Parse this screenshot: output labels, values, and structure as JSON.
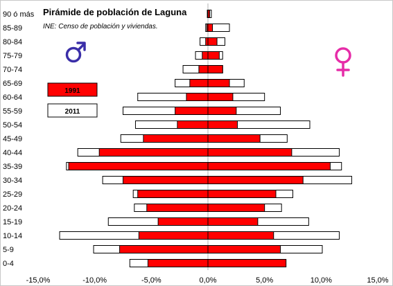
{
  "chart_data": {
    "type": "bar",
    "orientation": "horizontal",
    "title": "Pirámide de población de Laguna",
    "subtitle": "INE: Censo de población y viviendas.",
    "categories": [
      "0-4",
      "5-9",
      "10-14",
      "15-19",
      "20-24",
      "25-29",
      "30-34",
      "35-39",
      "40-44",
      "45-49",
      "50-54",
      "55-59",
      "60-64",
      "65-69",
      "70-74",
      "75-79",
      "80-84",
      "85-89",
      "90 ó más"
    ],
    "series": [
      {
        "name": "1991",
        "color": "#ff0000",
        "male": [
          -5.3,
          -7.8,
          -6.1,
          -4.4,
          -5.4,
          -6.2,
          -7.5,
          -12.3,
          -9.6,
          -5.7,
          -2.7,
          -2.9,
          -1.9,
          -1.6,
          -0.8,
          -0.5,
          -0.2,
          -0.1,
          -0.05
        ],
        "female": [
          6.9,
          6.4,
          5.8,
          4.4,
          5.0,
          6.0,
          8.4,
          10.8,
          7.4,
          4.6,
          2.6,
          2.5,
          2.2,
          1.9,
          1.3,
          1.0,
          0.8,
          0.4,
          0.15
        ]
      },
      {
        "name": "2011",
        "color": "#ffffff",
        "male": [
          -6.9,
          -10.1,
          -13.1,
          -8.8,
          -6.5,
          -6.6,
          -9.3,
          -12.5,
          -11.5,
          -7.7,
          -6.4,
          -7.5,
          -6.2,
          -2.9,
          -2.2,
          -1.1,
          -0.7,
          -0.2,
          -0.05
        ],
        "female": [
          5.4,
          10.1,
          11.6,
          8.9,
          6.5,
          7.5,
          12.7,
          11.8,
          11.6,
          7.0,
          9.0,
          6.4,
          5.0,
          3.2,
          1.3,
          1.3,
          1.5,
          1.9,
          0.3
        ]
      }
    ],
    "xlim": [
      -15,
      15
    ],
    "xticks": [
      -15,
      -10,
      -5,
      0,
      5,
      10,
      15
    ],
    "xtick_labels": [
      "-15,0%",
      "-10,0%",
      "-5,0%",
      "0,0%",
      "5,0%",
      "10,0%",
      "15,0%"
    ],
    "legend": {
      "items": [
        "1991",
        "2011"
      ],
      "placement": "left"
    },
    "symbols": {
      "left": "male-symbol",
      "right": "female-symbol"
    },
    "symbol_colors": {
      "male": "#3a2ea8",
      "female": "#e62ca8"
    },
    "grid": false
  }
}
